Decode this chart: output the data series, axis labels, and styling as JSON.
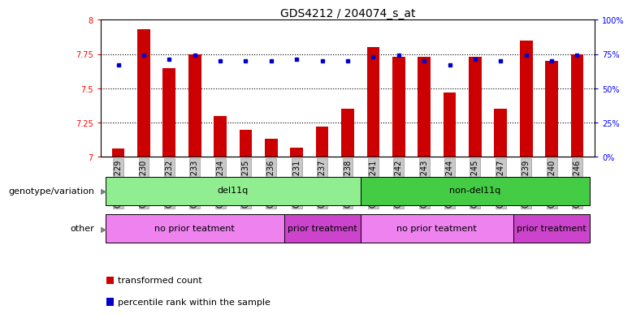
{
  "title": "GDS4212 / 204074_s_at",
  "samples": [
    "GSM652229",
    "GSM652230",
    "GSM652232",
    "GSM652233",
    "GSM652234",
    "GSM652235",
    "GSM652236",
    "GSM652231",
    "GSM652237",
    "GSM652238",
    "GSM652241",
    "GSM652242",
    "GSM652243",
    "GSM652244",
    "GSM652245",
    "GSM652247",
    "GSM652239",
    "GSM652240",
    "GSM652246"
  ],
  "red_values": [
    7.06,
    7.93,
    7.65,
    7.75,
    7.3,
    7.2,
    7.13,
    7.07,
    7.22,
    7.35,
    7.8,
    7.73,
    7.73,
    7.47,
    7.73,
    7.35,
    7.85,
    7.7,
    7.75
  ],
  "blue_values": [
    0.67,
    0.74,
    0.71,
    0.74,
    0.7,
    0.7,
    0.7,
    0.71,
    0.7,
    0.7,
    0.73,
    0.74,
    0.7,
    0.67,
    0.71,
    0.7,
    0.74,
    0.7,
    0.74
  ],
  "ylim_left": [
    7.0,
    8.0
  ],
  "yticks_left": [
    7.0,
    7.25,
    7.5,
    7.75,
    8.0
  ],
  "ytick_labels_left": [
    "7",
    "7.25",
    "7.5",
    "7.75",
    "8"
  ],
  "yticks_right": [
    0.0,
    0.25,
    0.5,
    0.75,
    1.0
  ],
  "ytick_labels_right": [
    "0%",
    "25%",
    "50%",
    "75%",
    "100%"
  ],
  "hlines": [
    7.25,
    7.5,
    7.75
  ],
  "genotype_groups": [
    {
      "label": "del11q",
      "start": 0,
      "end": 10,
      "color": "#90EE90"
    },
    {
      "label": "non-del11q",
      "start": 10,
      "end": 19,
      "color": "#44CC44"
    }
  ],
  "other_groups": [
    {
      "label": "no prior teatment",
      "start": 0,
      "end": 7,
      "color": "#EE82EE"
    },
    {
      "label": "prior treatment",
      "start": 7,
      "end": 10,
      "color": "#CC44CC"
    },
    {
      "label": "no prior teatment",
      "start": 10,
      "end": 16,
      "color": "#EE82EE"
    },
    {
      "label": "prior treatment",
      "start": 16,
      "end": 19,
      "color": "#CC44CC"
    }
  ],
  "bar_color": "#CC0000",
  "dot_color": "#0000CC",
  "bar_width": 0.5,
  "label_genotype": "genotype/variation",
  "label_other": "other",
  "legend_items": [
    "transformed count",
    "percentile rank within the sample"
  ],
  "title_fontsize": 10,
  "tick_fontsize": 7,
  "label_fontsize": 8,
  "annot_fontsize": 8
}
